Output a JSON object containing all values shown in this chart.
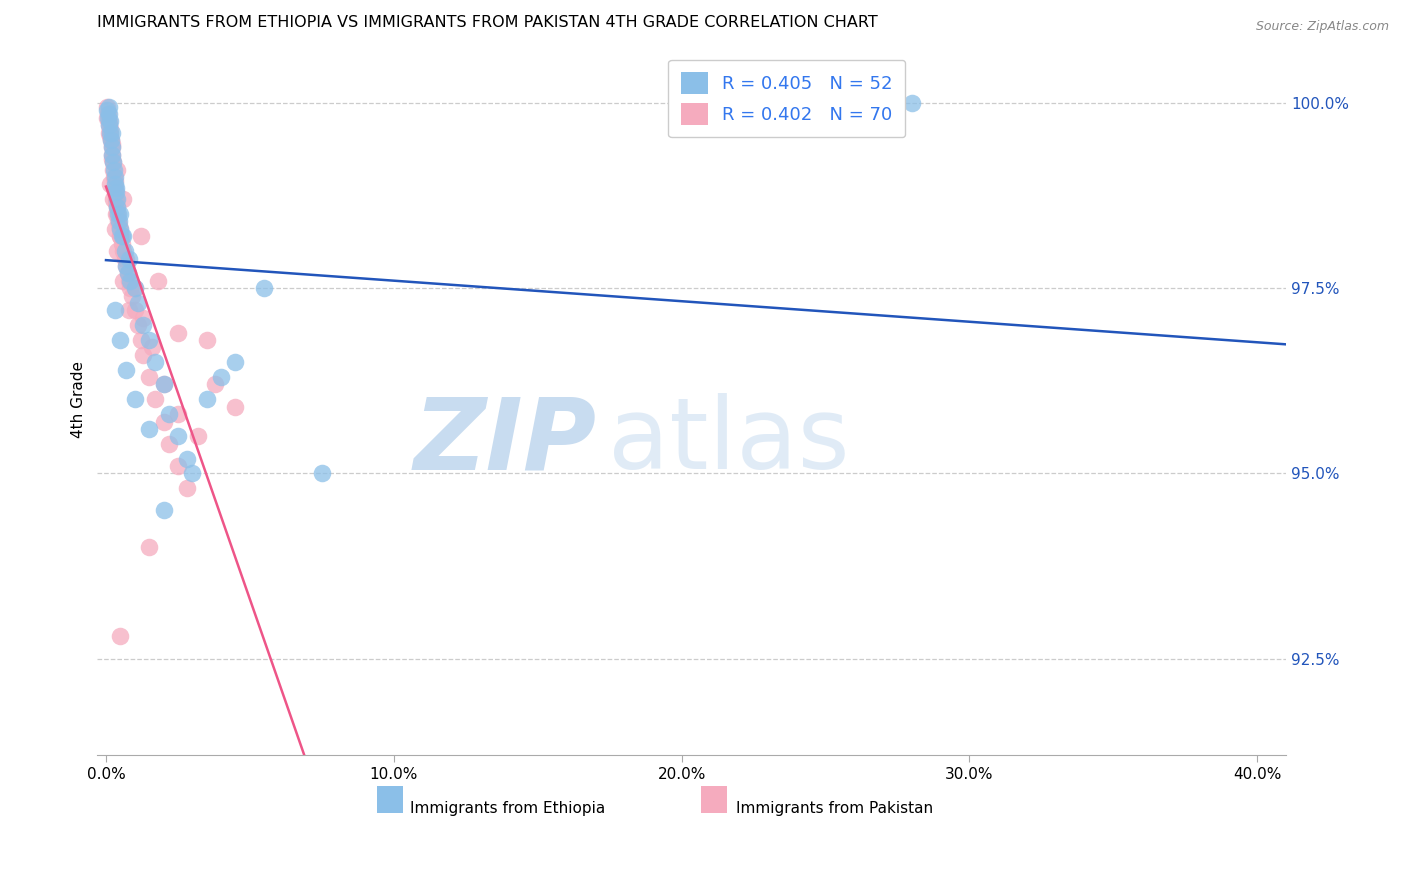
{
  "title": "IMMIGRANTS FROM ETHIOPIA VS IMMIGRANTS FROM PAKISTAN 4TH GRADE CORRELATION CHART",
  "source": "Source: ZipAtlas.com",
  "xlabel_ticks": [
    "0.0%",
    "10.0%",
    "20.0%",
    "30.0%",
    "40.0%"
  ],
  "xlabel_vals": [
    0.0,
    10.0,
    20.0,
    30.0,
    40.0
  ],
  "ylabel": "4th Grade",
  "ylabel_ticks": [
    "92.5%",
    "95.0%",
    "97.5%",
    "100.0%"
  ],
  "ylabel_vals": [
    92.5,
    95.0,
    97.5,
    100.0
  ],
  "ymin": 91.2,
  "ymax": 100.8,
  "xmin": -0.3,
  "xmax": 41.0,
  "legend_blue_r": "R = 0.405",
  "legend_blue_n": "N = 52",
  "legend_pink_r": "R = 0.402",
  "legend_pink_n": "N = 70",
  "blue_color": "#8BBFE8",
  "pink_color": "#F5ABBE",
  "blue_line_color": "#2255BB",
  "pink_line_color": "#EE5588",
  "legend_text_color": "#3377EE",
  "blue_scatter_x": [
    0.05,
    0.08,
    0.1,
    0.1,
    0.12,
    0.15,
    0.15,
    0.18,
    0.2,
    0.2,
    0.22,
    0.25,
    0.28,
    0.3,
    0.3,
    0.35,
    0.35,
    0.38,
    0.4,
    0.42,
    0.45,
    0.5,
    0.5,
    0.55,
    0.6,
    0.65,
    0.7,
    0.75,
    0.8,
    0.85,
    1.0,
    1.1,
    1.3,
    1.5,
    1.7,
    2.0,
    2.2,
    2.5,
    2.8,
    3.0,
    3.5,
    4.0,
    4.5,
    5.5,
    7.5,
    0.3,
    0.5,
    0.7,
    1.0,
    1.5,
    2.0,
    28.0
  ],
  "blue_scatter_y": [
    99.9,
    99.8,
    99.95,
    99.7,
    99.85,
    99.6,
    99.75,
    99.5,
    99.6,
    99.3,
    99.4,
    99.2,
    99.1,
    99.0,
    98.9,
    98.8,
    98.85,
    98.7,
    98.6,
    98.5,
    98.4,
    98.5,
    98.3,
    98.2,
    98.2,
    98.0,
    97.8,
    97.7,
    97.9,
    97.6,
    97.5,
    97.3,
    97.0,
    96.8,
    96.5,
    96.2,
    95.8,
    95.5,
    95.2,
    95.0,
    96.0,
    96.3,
    96.5,
    97.5,
    95.0,
    97.2,
    96.8,
    96.4,
    96.0,
    95.6,
    94.5,
    100.0
  ],
  "pink_scatter_x": [
    0.05,
    0.05,
    0.08,
    0.1,
    0.12,
    0.12,
    0.15,
    0.15,
    0.18,
    0.2,
    0.2,
    0.22,
    0.25,
    0.25,
    0.28,
    0.3,
    0.3,
    0.32,
    0.35,
    0.35,
    0.38,
    0.4,
    0.42,
    0.45,
    0.5,
    0.5,
    0.55,
    0.6,
    0.65,
    0.7,
    0.75,
    0.8,
    0.85,
    0.9,
    1.0,
    1.1,
    1.2,
    1.3,
    1.5,
    1.7,
    2.0,
    2.2,
    2.5,
    2.8,
    3.2,
    0.15,
    0.25,
    0.35,
    0.5,
    0.7,
    1.0,
    1.3,
    1.6,
    2.0,
    2.5,
    0.3,
    0.4,
    0.6,
    0.8,
    3.5,
    4.5,
    0.2,
    0.4,
    0.6,
    1.2,
    1.8,
    2.5,
    3.8,
    0.5,
    1.5
  ],
  "pink_scatter_y": [
    99.95,
    99.8,
    99.85,
    99.75,
    99.7,
    99.6,
    99.65,
    99.55,
    99.5,
    99.45,
    99.3,
    99.25,
    99.2,
    99.1,
    99.0,
    98.95,
    98.85,
    98.8,
    98.7,
    98.65,
    98.6,
    98.5,
    98.4,
    98.35,
    98.3,
    98.2,
    98.1,
    98.0,
    97.9,
    97.8,
    97.7,
    97.6,
    97.5,
    97.4,
    97.2,
    97.0,
    96.8,
    96.6,
    96.3,
    96.0,
    95.7,
    95.4,
    95.1,
    94.8,
    95.5,
    98.9,
    98.7,
    98.5,
    98.2,
    97.9,
    97.5,
    97.1,
    96.7,
    96.2,
    95.8,
    98.3,
    98.0,
    97.6,
    97.2,
    96.8,
    95.9,
    99.4,
    99.1,
    98.7,
    98.2,
    97.6,
    96.9,
    96.2,
    92.8,
    94.0
  ]
}
